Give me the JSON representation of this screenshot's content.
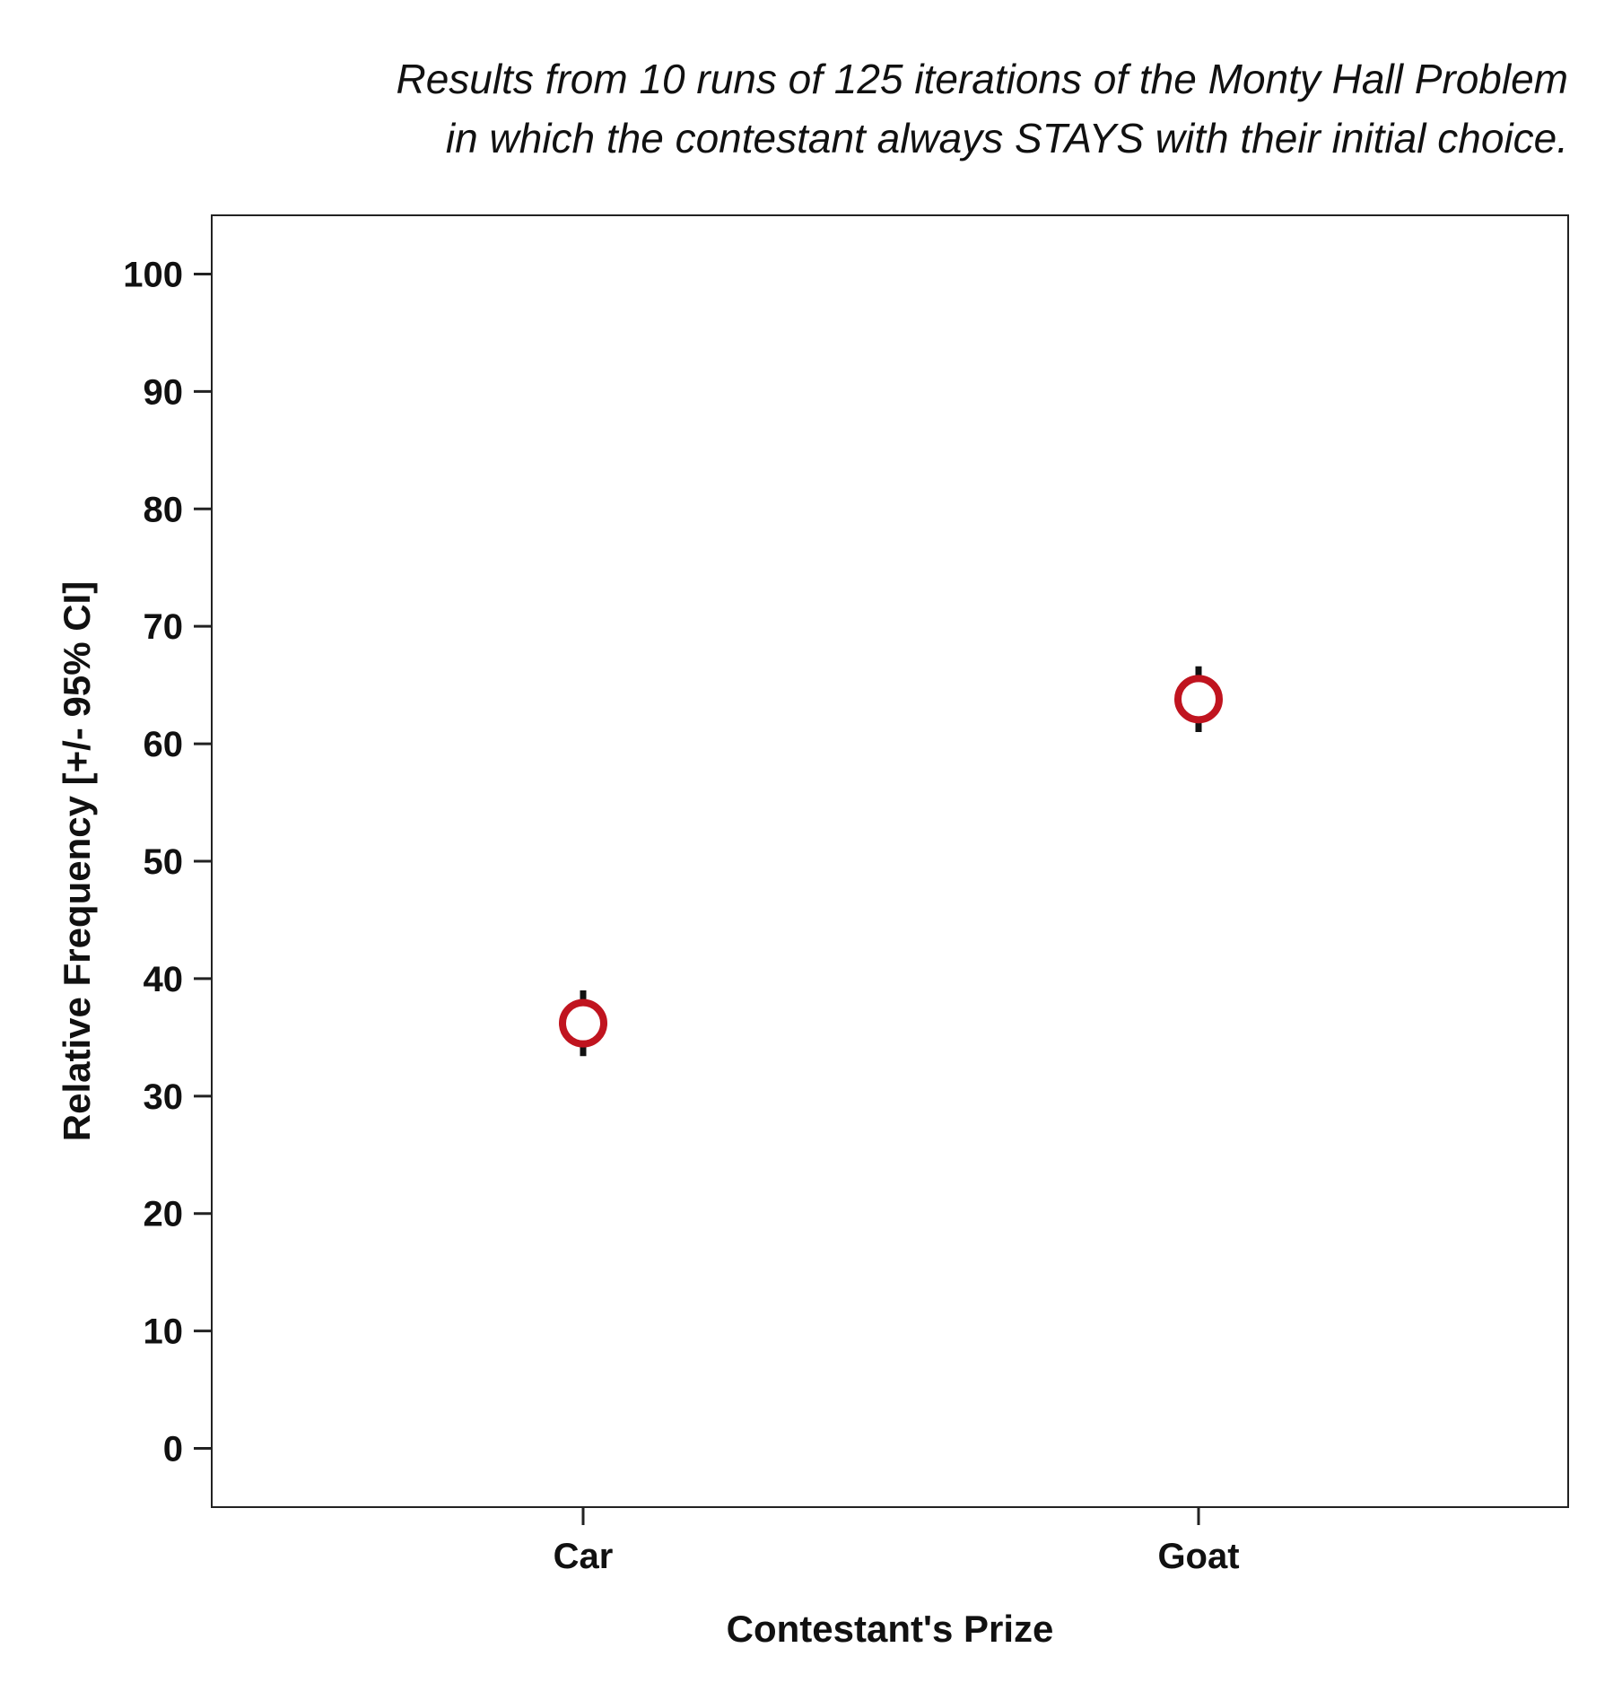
{
  "chart_data": {
    "type": "scatter",
    "title_lines": [
      "Results from 10 runs of 125 iterations of the Monty Hall Problem",
      "in which the contestant always STAYS with their initial choice."
    ],
    "xlabel": "Contestant's Prize",
    "ylabel": "Relative Frequency [+/- 95% CI]",
    "categories": [
      "Car",
      "Goat"
    ],
    "values": [
      36.2,
      63.8
    ],
    "ci_lower": [
      33.4,
      61.0
    ],
    "ci_upper": [
      39.0,
      66.6
    ],
    "ylim": [
      -5,
      105
    ],
    "yticks": [
      0,
      10,
      20,
      30,
      40,
      50,
      60,
      70,
      80,
      90,
      100
    ],
    "grid": false,
    "legend": "none",
    "colors": {
      "marker": "#c0141f",
      "errorbar": "#111111",
      "axis": "#222222"
    }
  }
}
